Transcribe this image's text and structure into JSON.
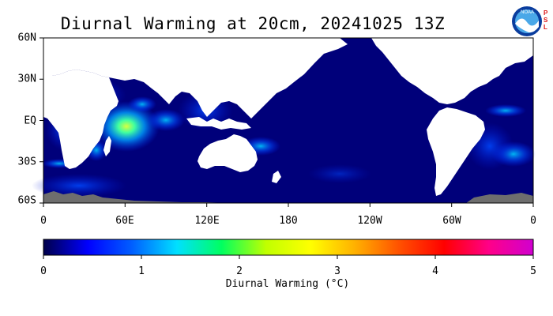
{
  "title": "Diurnal Warming at 20cm, 20241025 13Z",
  "logo": {
    "icon": "noaa-logo",
    "side_text": [
      "P",
      "S",
      "L"
    ]
  },
  "map": {
    "projection": "equirectangular",
    "lat_labels": [
      "60N",
      "30N",
      "EQ",
      "30S",
      "60S"
    ],
    "lon_labels": [
      "0",
      "60E",
      "120E",
      "180",
      "120W",
      "60W",
      "0"
    ],
    "colors": {
      "ocean_background": "#00007a",
      "land": "#ffffff",
      "sea_ice_no_data": "#6e6e6e"
    }
  },
  "colorbar": {
    "min": 0,
    "max": 5,
    "tick_labels": [
      "0",
      "1",
      "2",
      "3",
      "4",
      "5"
    ],
    "title": "Diurnal Warming (°C)",
    "colors": [
      "#00004a",
      "#0000ff",
      "#0060ff",
      "#00e0ff",
      "#00ff60",
      "#c0ff00",
      "#ffff00",
      "#ffb000",
      "#ff5000",
      "#ff0000",
      "#ff0088",
      "#d000d0"
    ]
  }
}
